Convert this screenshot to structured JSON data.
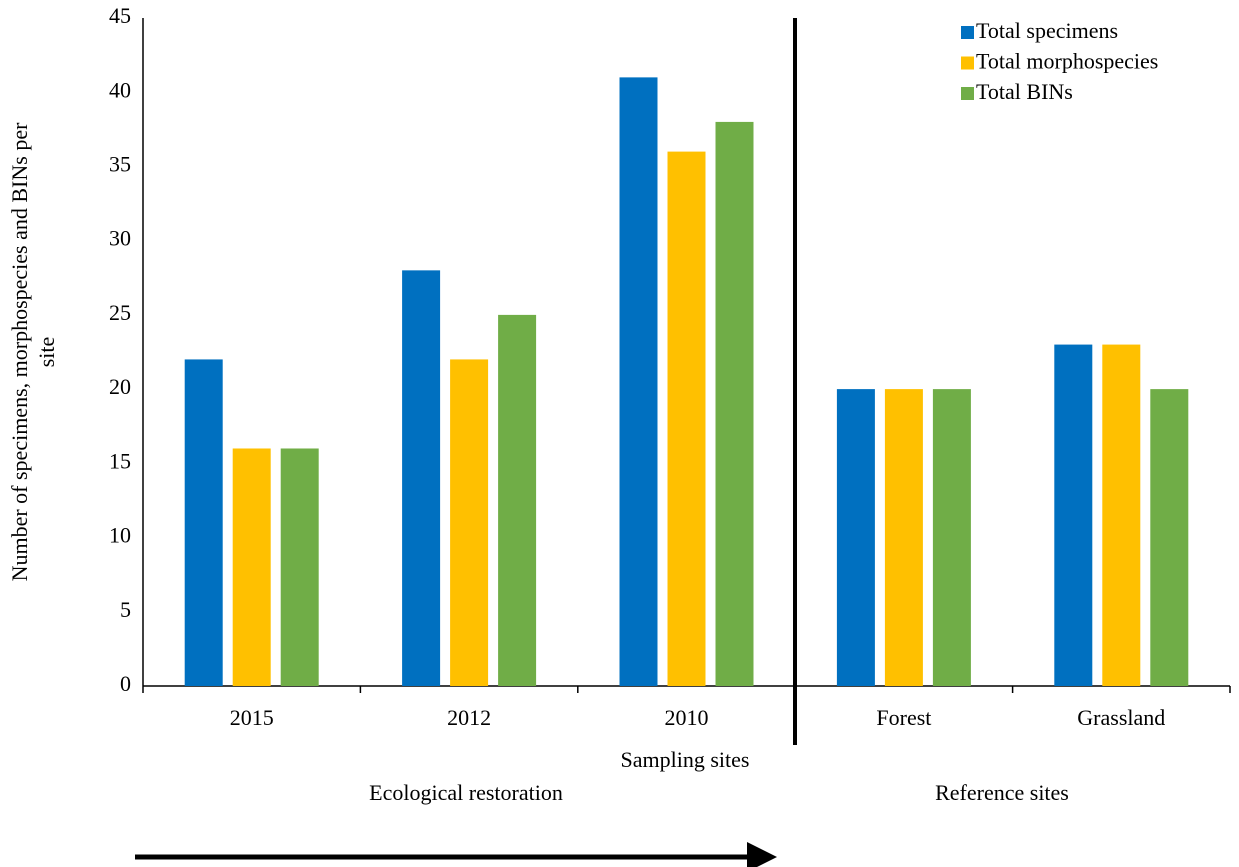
{
  "chart_data": {
    "type": "bar",
    "x_label": "Sampling sites",
    "y_label": [
      "Number of specimens, morphospecies and BINs per",
      "site"
    ],
    "categories": [
      "2015",
      "2012",
      "2010",
      "Forest",
      "Grassland"
    ],
    "series": [
      {
        "name": "Total specimens",
        "color": "#0070c0",
        "values": [
          22,
          28,
          41,
          20,
          23
        ]
      },
      {
        "name": "Total morphospecies",
        "color": "#ffc000",
        "values": [
          16,
          22,
          36,
          20,
          23
        ]
      },
      {
        "name": "Total BINs",
        "color": "#70ad47",
        "values": [
          16,
          25,
          38,
          20,
          20
        ]
      }
    ],
    "ylim": [
      0,
      45
    ],
    "yticks": [
      0,
      5,
      10,
      15,
      20,
      25,
      30,
      35,
      40,
      45
    ],
    "grid": false,
    "legend": "top-right",
    "annotations": [
      "Ecological restoration",
      "Reference sites"
    ]
  }
}
